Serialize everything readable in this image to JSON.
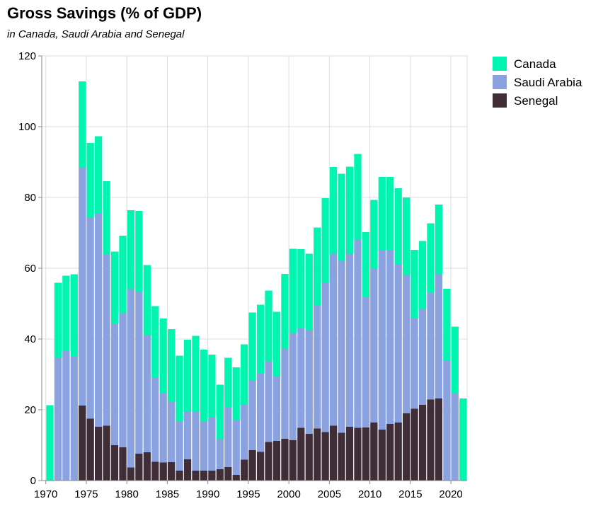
{
  "colors": {
    "Canada": "#00f5b0",
    "Saudi Arabia": "#8aa3e0",
    "Senegal": "#3f2d38",
    "grid": "#dddddd",
    "axis": "#888888"
  },
  "chart_data": {
    "type": "bar",
    "stacked": true,
    "title": "Gross Savings (% of GDP)",
    "subtitle": "in Canada, Saudi Arabia and Senegal",
    "xlabel": "",
    "ylabel": "",
    "ylim": [
      0,
      120
    ],
    "yticks": [
      0,
      20,
      40,
      60,
      80,
      100,
      120
    ],
    "xticks": [
      1970,
      1975,
      1980,
      1985,
      1990,
      1995,
      2000,
      2005,
      2010,
      2015,
      2020
    ],
    "grid": true,
    "legend_position": "top-right",
    "categories": [
      1970,
      1971,
      1972,
      1973,
      1974,
      1975,
      1976,
      1977,
      1978,
      1979,
      1980,
      1981,
      1982,
      1983,
      1984,
      1985,
      1986,
      1987,
      1988,
      1989,
      1990,
      1991,
      1992,
      1993,
      1994,
      1995,
      1996,
      1997,
      1998,
      1999,
      2000,
      2001,
      2002,
      2003,
      2004,
      2005,
      2006,
      2007,
      2008,
      2009,
      2010,
      2011,
      2012,
      2013,
      2014,
      2015,
      2016,
      2017,
      2018,
      2019,
      2020,
      2021
    ],
    "series": [
      {
        "name": "Senegal",
        "values": [
          null,
          null,
          null,
          null,
          21.2,
          17.5,
          15.2,
          15.5,
          10.0,
          9.4,
          3.7,
          7.6,
          8.0,
          5.3,
          5.1,
          5.2,
          2.8,
          6.0,
          2.8,
          2.8,
          2.8,
          3.2,
          3.8,
          1.6,
          5.9,
          8.6,
          8.1,
          10.9,
          11.2,
          11.8,
          11.4,
          14.9,
          13.2,
          14.7,
          13.7,
          15.5,
          13.5,
          15.2,
          14.9,
          15.0,
          16.4,
          14.4,
          16.0,
          16.4,
          19.0,
          20.3,
          21.4,
          22.9,
          23.2,
          null,
          null,
          null
        ]
      },
      {
        "name": "Saudi Arabia",
        "values": [
          null,
          34.8,
          36.7,
          35.1,
          67.3,
          56.7,
          60.2,
          48.4,
          34.3,
          37.9,
          50.4,
          45.7,
          33.1,
          23.9,
          19.6,
          17.0,
          13.8,
          13.6,
          16.8,
          13.8,
          15.2,
          8.5,
          17.0,
          15.5,
          15.5,
          19.7,
          22.2,
          22.8,
          18.4,
          25.5,
          30.3,
          28.1,
          29.3,
          34.8,
          42.2,
          48.6,
          48.6,
          48.9,
          53.2,
          36.9,
          43.6,
          50.8,
          49.2,
          44.8,
          39.1,
          25.5,
          27.1,
          30.1,
          35.2,
          34.0,
          24.7,
          null
        ]
      },
      {
        "name": "Canada",
        "values": [
          21.3,
          21.1,
          21.2,
          23.2,
          24.3,
          21.2,
          21.9,
          20.7,
          20.4,
          21.9,
          22.3,
          22.9,
          19.8,
          20.1,
          21.1,
          20.6,
          18.7,
          20.2,
          21.3,
          20.4,
          17.6,
          15.4,
          13.9,
          14.9,
          17.1,
          19.2,
          19.4,
          20.0,
          18.1,
          21.1,
          23.8,
          22.4,
          21.6,
          22.0,
          23.9,
          24.5,
          24.6,
          24.6,
          24.2,
          18.3,
          19.3,
          20.6,
          20.6,
          21.4,
          21.9,
          19.4,
          19.2,
          19.7,
          19.6,
          20.2,
          18.8,
          23.2
        ]
      }
    ]
  }
}
